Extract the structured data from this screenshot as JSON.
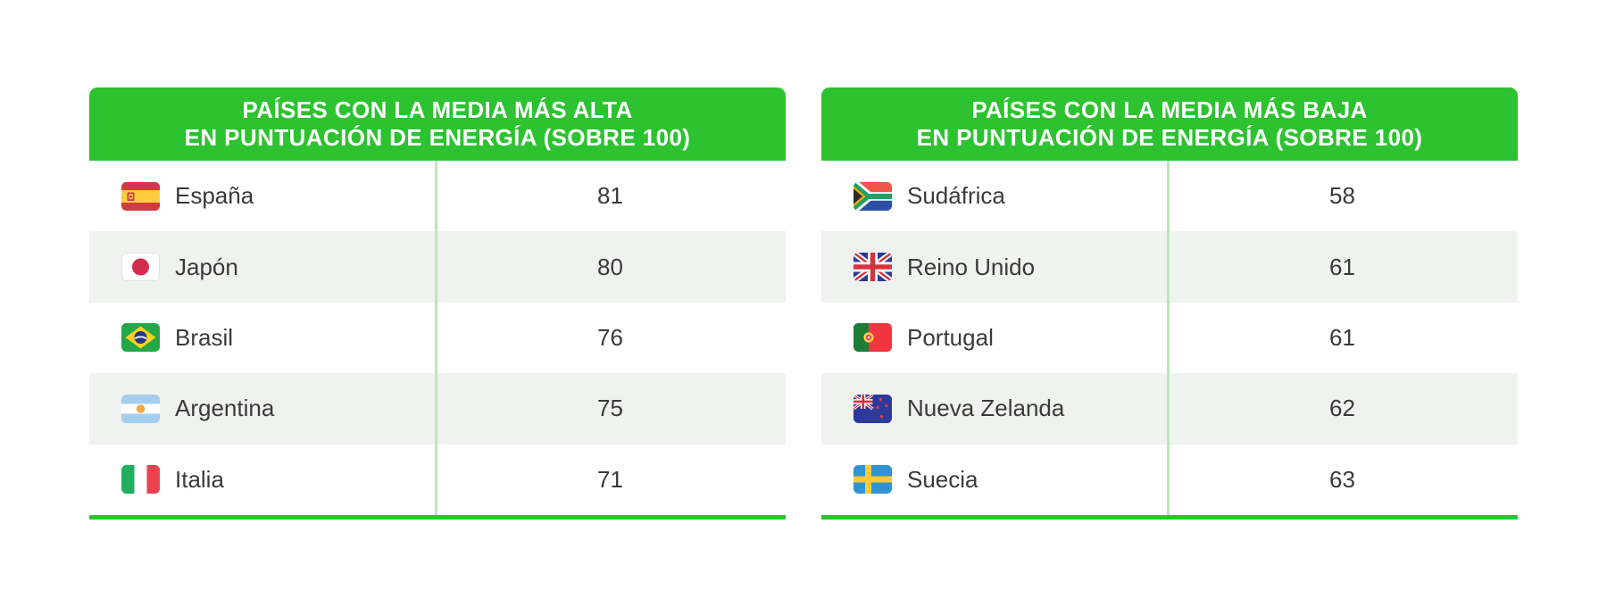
{
  "page": {
    "background": "#FFFFFF"
  },
  "colors": {
    "header_green": "#2DC230",
    "bottom_bar_green": "#2DC230",
    "divider_light_green": "#BDE6BC",
    "row_stripe_gray": "#EFF2EE",
    "text_dark": "#3A3A3A",
    "header_text": "#FFFFFF"
  },
  "tables": [
    {
      "id": "highest",
      "header_line1": "PAÍSES CON LA MEDIA MÁS ALTA",
      "header_line2": "EN PUNTUACIÓN DE ENERGÍA (SOBRE 100)",
      "rows": [
        {
          "country": "España",
          "flag_icon": "flag-spain",
          "score": "81"
        },
        {
          "country": "Japón",
          "flag_icon": "flag-japan",
          "score": "80"
        },
        {
          "country": "Brasil",
          "flag_icon": "flag-brazil",
          "score": "76"
        },
        {
          "country": "Argentina",
          "flag_icon": "flag-argentina",
          "score": "75"
        },
        {
          "country": "Italia",
          "flag_icon": "flag-italy",
          "score": "71"
        }
      ]
    },
    {
      "id": "lowest",
      "header_line1": "PAÍSES CON LA MEDIA MÁS BAJA",
      "header_line2": "EN PUNTUACIÓN DE ENERGÍA (SOBRE 100)",
      "rows": [
        {
          "country": "Sudáfrica",
          "flag_icon": "flag-south-africa",
          "score": "58"
        },
        {
          "country": "Reino Unido",
          "flag_icon": "flag-united-kingdom",
          "score": "61"
        },
        {
          "country": "Portugal",
          "flag_icon": "flag-portugal",
          "score": "61"
        },
        {
          "country": "Nueva Zelanda",
          "flag_icon": "flag-new-zealand",
          "score": "62"
        },
        {
          "country": "Suecia",
          "flag_icon": "flag-sweden",
          "score": "63"
        }
      ]
    }
  ],
  "chart_data": [
    {
      "type": "table",
      "title": "PAÍSES CON LA MEDIA MÁS ALTA EN PUNTUACIÓN DE ENERGÍA (SOBRE 100)",
      "categories": [
        "España",
        "Japón",
        "Brasil",
        "Argentina",
        "Italia"
      ],
      "values": [
        81,
        80,
        76,
        75,
        71
      ],
      "value_scale": "sobre 100"
    },
    {
      "type": "table",
      "title": "PAÍSES CON LA MEDIA MÁS BAJA EN PUNTUACIÓN DE ENERGÍA (SOBRE 100)",
      "categories": [
        "Sudáfrica",
        "Reino Unido",
        "Portugal",
        "Nueva Zelanda",
        "Suecia"
      ],
      "values": [
        58,
        61,
        61,
        62,
        63
      ],
      "value_scale": "sobre 100"
    }
  ]
}
